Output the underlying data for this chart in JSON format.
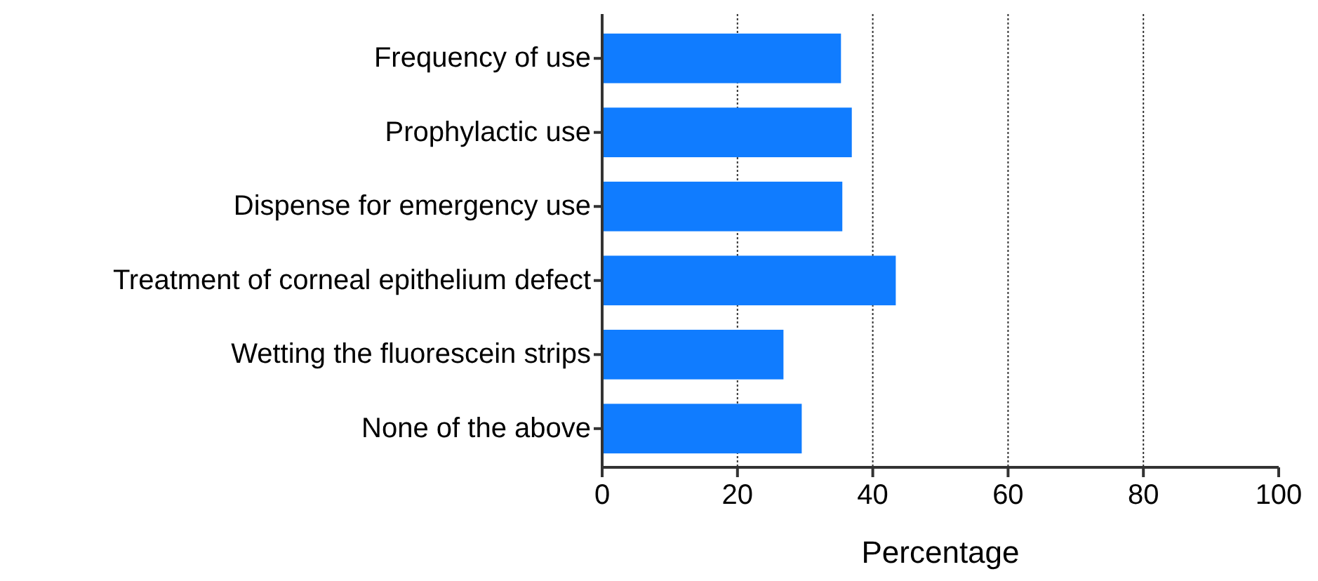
{
  "chart_data": {
    "type": "bar",
    "orientation": "horizontal",
    "xlabel": "Percentage",
    "categories": [
      "Frequency of use",
      "Prophylactic use",
      "Dispense for emergency use",
      "Treatment of corneal epithelium defect",
      "Wetting the fluorescein strips",
      "None of the above"
    ],
    "values": [
      35.3,
      36.9,
      35.5,
      43.4,
      26.8,
      29.5
    ],
    "color": "#107cff",
    "xlim": [
      0,
      100
    ],
    "xticks": [
      0,
      20,
      40,
      60,
      80,
      100
    ],
    "grid": "x"
  }
}
